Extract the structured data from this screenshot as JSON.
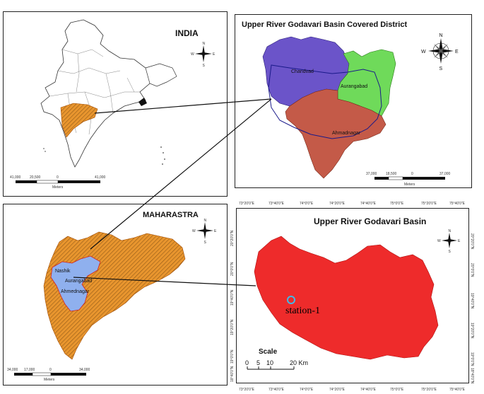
{
  "panels": {
    "india": {
      "title": "INDIA",
      "scale": {
        "labels": [
          "41,000",
          "20,500",
          "0",
          "41,000"
        ],
        "unit": "Meters"
      },
      "compass": {
        "n": "N",
        "e": "E",
        "s": "S",
        "w": "W"
      }
    },
    "districts": {
      "title": "Upper River Godavari Basin Covered District",
      "regions": [
        "Chandvad",
        "Aurangabad",
        "Ahmadnagar"
      ],
      "scale": {
        "labels": [
          "37,000",
          "18,500",
          "0",
          "37,000"
        ],
        "unit": "Meters"
      },
      "compass": {
        "n": "N",
        "e": "E",
        "s": "S",
        "w": "W"
      }
    },
    "maharastra": {
      "title": "MAHARASTRA",
      "regions": [
        "Nashik",
        "Aurangabad",
        "Ahmednagar"
      ],
      "scale": {
        "labels": [
          "34,000",
          "17,000",
          "0",
          "34,000"
        ],
        "unit": "Meters"
      },
      "compass": {
        "n": "N",
        "e": "E",
        "s": "S",
        "w": "W"
      }
    },
    "basin": {
      "title": "Upper River Godavari Basin",
      "station": "station-1",
      "scale_title": "Scale",
      "scale_labels": [
        "0",
        "5",
        "10",
        "20 Km"
      ],
      "lon_ticks": [
        "73°20'0\"E",
        "73°40'0\"E",
        "74°0'0\"E",
        "74°20'0\"E",
        "74°40'0\"E",
        "75°0'0\"E",
        "75°20'0\"E",
        "75°40'0\"E"
      ],
      "lat_ticks": [
        "20°20'0\"N",
        "20°0'0\"N",
        "19°40'0\"N",
        "19°20'0\"N",
        "19°0'0\"N",
        "18°40'0\"N"
      ],
      "compass": {
        "n": "N",
        "e": "E",
        "s": "S",
        "w": "W"
      }
    }
  },
  "colors": {
    "basin_red": "#ee2b2b",
    "chandvad": "#6b54c9",
    "aurangabad": "#6fda5a",
    "ahmadnagar": "#c45a48",
    "maharastra_orange": "#e8952e",
    "basin_blue": "#8fb0ee",
    "station_ring": "#3fb9e8"
  }
}
